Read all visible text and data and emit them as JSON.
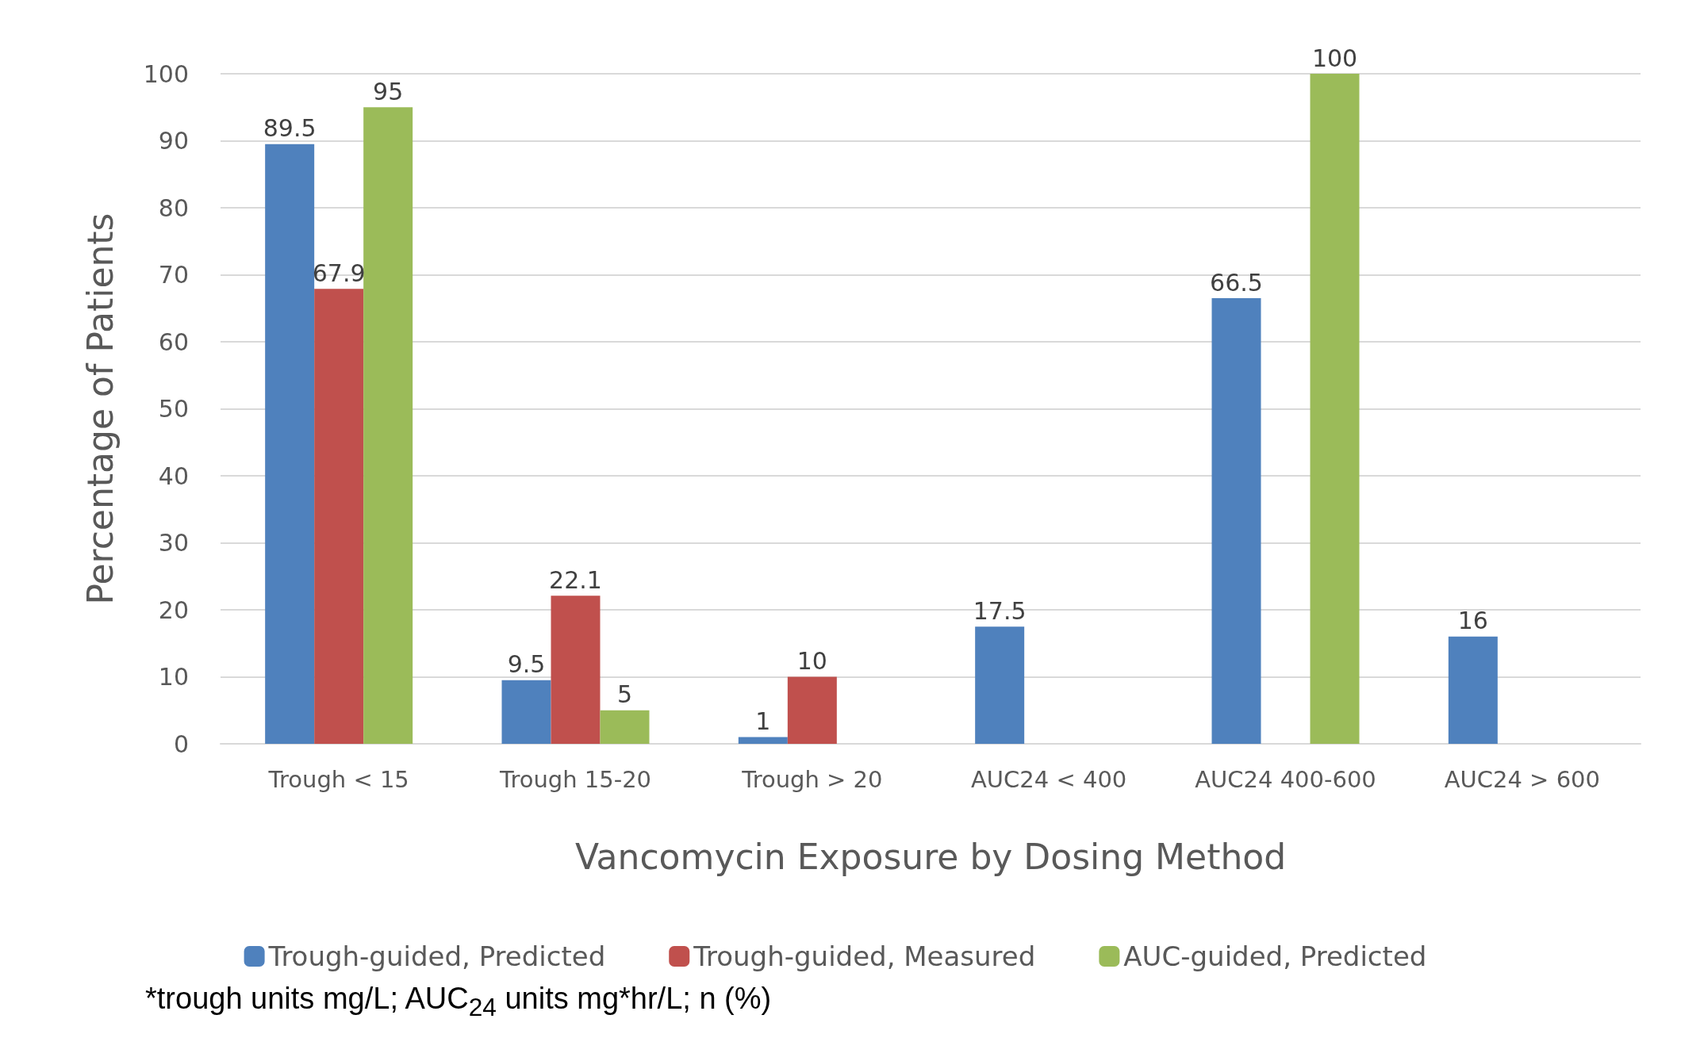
{
  "chart_data": {
    "type": "bar",
    "xlabel": "Vancomycin Exposure by Dosing Method",
    "ylabel": "Percentage of Patients",
    "categories": [
      "Trough < 15",
      "Trough 15-20",
      "Trough > 20",
      "AUC24 < 400",
      "AUC24 400-600",
      "AUC24 > 600"
    ],
    "series": [
      {
        "name": "Trough-guided, Predicted",
        "color": "#4f81bd",
        "values": [
          89.5,
          9.5,
          1,
          17.5,
          66.5,
          16
        ]
      },
      {
        "name": "Trough-guided, Measured",
        "color": "#c0504d",
        "values": [
          67.9,
          22.1,
          10,
          null,
          null,
          null
        ]
      },
      {
        "name": "AUC-guided, Predicted",
        "color": "#9bbb59",
        "values": [
          95,
          5,
          null,
          null,
          100,
          null
        ]
      }
    ],
    "ylim": [
      0,
      100
    ],
    "yticks": [
      0,
      10,
      20,
      30,
      40,
      50,
      60,
      70,
      80,
      90,
      100
    ],
    "grid": "y",
    "legend": "bottom",
    "data_labels": true,
    "annotations": [
      "*trough units mg/L; AUC$_{24}$ units mg*hr/L; n (%)"
    ]
  }
}
